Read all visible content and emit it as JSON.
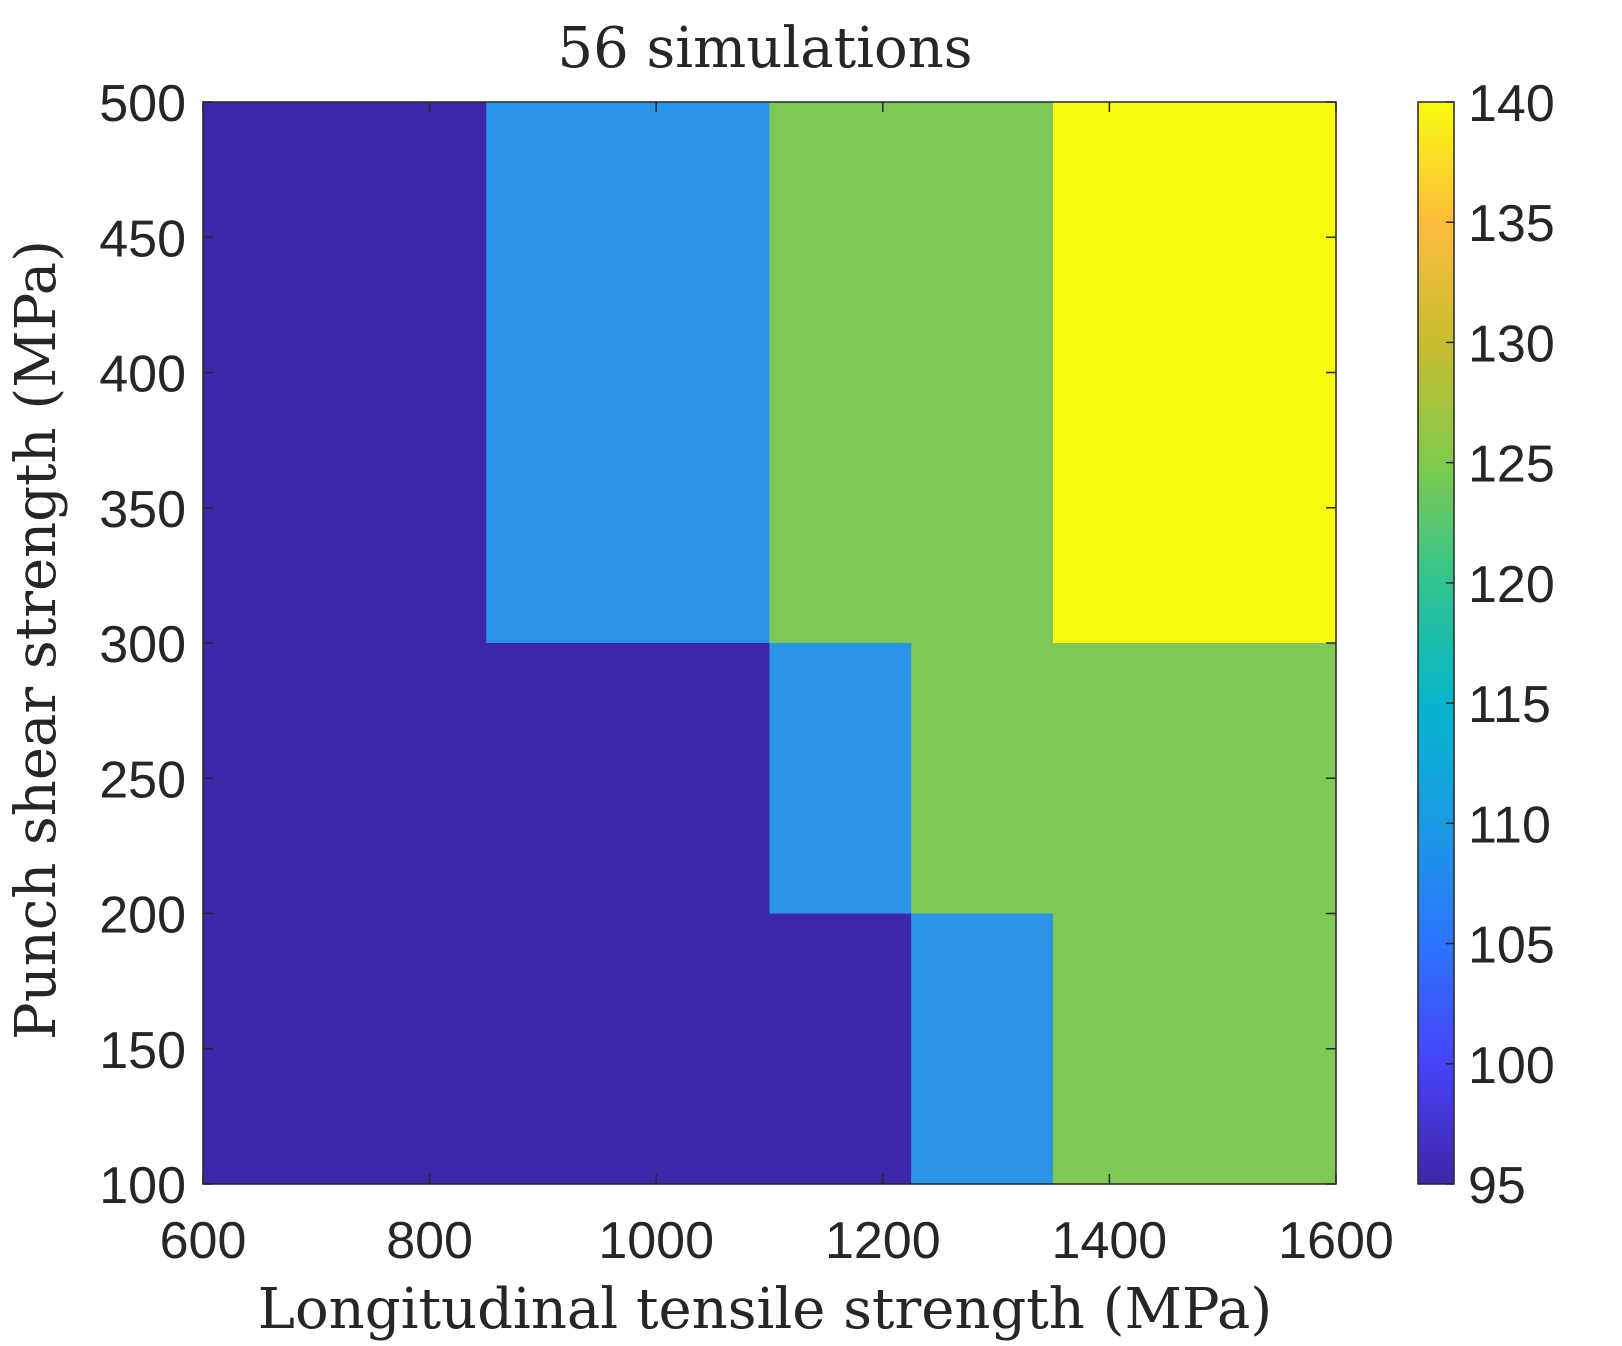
{
  "chart_data": {
    "type": "heatmap",
    "title": "56 simulations",
    "xlabel": "Longitudinal tensile strength (MPa)",
    "ylabel": "Punch shear strength (MPa)",
    "xlim": [
      600,
      1600
    ],
    "ylim": [
      100,
      500
    ],
    "x_ticks": [
      600,
      800,
      1000,
      1200,
      1400,
      1600
    ],
    "y_ticks": [
      100,
      150,
      200,
      250,
      300,
      350,
      400,
      450,
      500
    ],
    "colorbar": {
      "range": [
        95,
        140
      ],
      "ticks": [
        95,
        100,
        105,
        110,
        115,
        120,
        125,
        130,
        135,
        140
      ],
      "colormap": "parula"
    },
    "regions": [
      {
        "x": [
          600,
          1600
        ],
        "y": [
          100,
          500
        ],
        "value": 96
      },
      {
        "x": [
          850,
          1100
        ],
        "y": [
          300,
          500
        ],
        "value": 109
      },
      {
        "x": [
          1100,
          1350
        ],
        "y": [
          300,
          500
        ],
        "value": 125
      },
      {
        "x": [
          1350,
          1600
        ],
        "y": [
          300,
          500
        ],
        "value": 140
      },
      {
        "x": [
          1100,
          1225
        ],
        "y": [
          200,
          300
        ],
        "value": 109
      },
      {
        "x": [
          1225,
          1600
        ],
        "y": [
          200,
          300
        ],
        "value": 125
      },
      {
        "x": [
          1225,
          1350
        ],
        "y": [
          100,
          200
        ],
        "value": 109
      },
      {
        "x": [
          1350,
          1600
        ],
        "y": [
          100,
          200
        ],
        "value": 125
      }
    ],
    "colors": {
      "96": "#3e26a8",
      "109": "#2a95e8",
      "125": "#7ec856",
      "140": "#f9fb0e"
    }
  }
}
